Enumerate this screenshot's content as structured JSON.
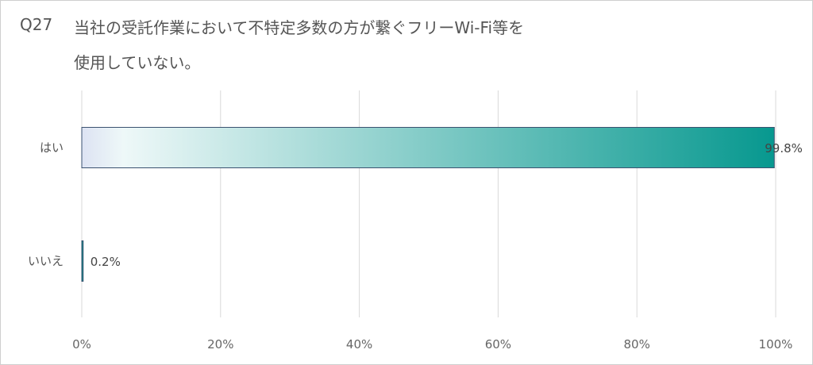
{
  "question": {
    "number": "Q27",
    "line1": "当社の受託作業において不特定多数の方が繋ぐフリーWi-Fi等を",
    "line2": "使用していない。"
  },
  "colors": {
    "bar_start": "#dde3f3",
    "bar_light": "#eef8f8",
    "bar_end": "#07988f",
    "bar_border": "#3b5270",
    "grid": "#d9d9d9"
  },
  "chart_data": {
    "type": "bar",
    "orientation": "horizontal",
    "categories": [
      "はい",
      "いいえ"
    ],
    "values": [
      99.8,
      0.2
    ],
    "data_labels": [
      "99.8%",
      "0.2%"
    ],
    "xlim": [
      0,
      100
    ],
    "xticks": [
      0,
      20,
      40,
      60,
      80,
      100
    ],
    "xtick_labels": [
      "0%",
      "20%",
      "40%",
      "60%",
      "80%",
      "100%"
    ],
    "grid": true,
    "legend": "none"
  }
}
